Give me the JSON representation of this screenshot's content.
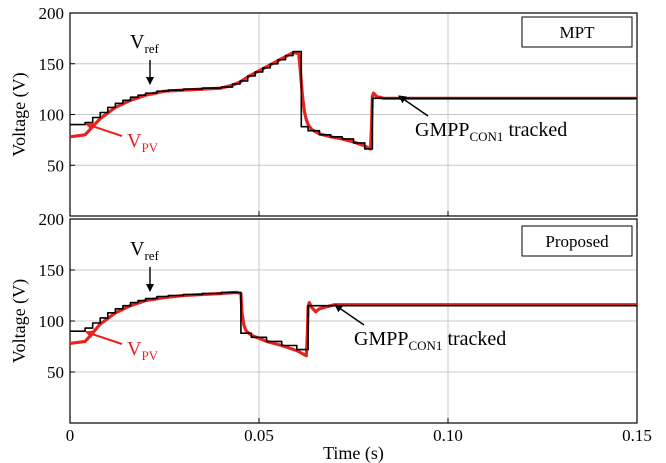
{
  "chart_data": [
    {
      "type": "line",
      "legend_box": "MPT",
      "ylabel": "Voltage (V)",
      "xlabel": "",
      "xlim": [
        0,
        0.15
      ],
      "ylim": [
        0,
        200
      ],
      "xticks": [
        0,
        0.05,
        0.1,
        0.15
      ],
      "xtick_labels": [
        "",
        "",
        "",
        ""
      ],
      "yticks": [
        0,
        50,
        100,
        150,
        200
      ],
      "ytick_labels": [
        "",
        "50",
        "100",
        "150",
        "200"
      ],
      "grid": true,
      "series": [
        {
          "color": "#000000",
          "x": [
            0,
            0.004,
            0.004,
            0.006,
            0.006,
            0.008,
            0.008,
            0.01,
            0.01,
            0.012,
            0.012,
            0.014,
            0.014,
            0.016,
            0.016,
            0.018,
            0.018,
            0.02,
            0.02,
            0.023,
            0.023,
            0.026,
            0.026,
            0.03,
            0.03,
            0.035,
            0.035,
            0.04,
            0.04,
            0.043,
            0.043,
            0.045,
            0.045,
            0.047,
            0.047,
            0.049,
            0.049,
            0.051,
            0.051,
            0.053,
            0.053,
            0.055,
            0.055,
            0.057,
            0.057,
            0.059,
            0.059,
            0.0612,
            0.0612,
            0.063,
            0.063,
            0.066,
            0.066,
            0.069,
            0.069,
            0.072,
            0.072,
            0.075,
            0.075,
            0.078,
            0.078,
            0.08,
            0.08,
            0.15
          ],
          "y": [
            90,
            90,
            92,
            92,
            97,
            97,
            102,
            102,
            107,
            107,
            111,
            111,
            114,
            114,
            117,
            117,
            119,
            119,
            121,
            121,
            123,
            123,
            124,
            124,
            125,
            125,
            126,
            126,
            127,
            127,
            130,
            130,
            133,
            133,
            138,
            138,
            142,
            142,
            146,
            146,
            150,
            150,
            154,
            154,
            158,
            158,
            162,
            162,
            88,
            88,
            84,
            84,
            80,
            80,
            78,
            78,
            76,
            76,
            72,
            72,
            66,
            66,
            116,
            116
          ]
        },
        {
          "color": "#e8231f",
          "x": [
            0,
            0.002,
            0.004,
            0.005,
            0.008,
            0.012,
            0.016,
            0.02,
            0.025,
            0.03,
            0.04,
            0.043,
            0.045,
            0.047,
            0.049,
            0.051,
            0.053,
            0.055,
            0.057,
            0.059,
            0.0605,
            0.061,
            0.0615,
            0.062,
            0.0625,
            0.063,
            0.064,
            0.066,
            0.069,
            0.072,
            0.075,
            0.078,
            0.0795,
            0.0798,
            0.08,
            0.0803,
            0.0806,
            0.081,
            0.0815,
            0.082,
            0.083,
            0.085,
            0.15
          ],
          "y": [
            78,
            79,
            80,
            84,
            96,
            107,
            114,
            119,
            123,
            124,
            126,
            129,
            132,
            137,
            141,
            145,
            149,
            153,
            157,
            161,
            160,
            140,
            118,
            103,
            95,
            90,
            85,
            81,
            78,
            76,
            73,
            69,
            66,
            90,
            118,
            121,
            120,
            118,
            117,
            117,
            116,
            116,
            116
          ]
        }
      ],
      "annotations": [
        {
          "main": "V",
          "sub": "ref",
          "color": "#000000"
        },
        {
          "main": "V",
          "sub": "PV",
          "color": "#e8231f"
        },
        {
          "main": "GMPP",
          "sub": "CON1",
          "tail": " tracked",
          "color": "#000000"
        }
      ]
    },
    {
      "type": "line",
      "legend_box": "Proposed",
      "ylabel": "Voltage (V)",
      "xlabel": "Time (s)",
      "xlim": [
        0,
        0.15
      ],
      "ylim": [
        0,
        200
      ],
      "xticks": [
        0,
        0.05,
        0.1,
        0.15
      ],
      "xtick_labels": [
        "0",
        "0.05",
        "0.10",
        "0.15"
      ],
      "yticks": [
        0,
        50,
        100,
        150,
        200
      ],
      "ytick_labels": [
        "",
        "50",
        "100",
        "150",
        "200"
      ],
      "grid": true,
      "series": [
        {
          "color": "#000000",
          "x": [
            0,
            0.004,
            0.004,
            0.006,
            0.006,
            0.008,
            0.008,
            0.01,
            0.01,
            0.012,
            0.012,
            0.014,
            0.014,
            0.016,
            0.016,
            0.018,
            0.018,
            0.02,
            0.02,
            0.023,
            0.023,
            0.026,
            0.026,
            0.03,
            0.03,
            0.035,
            0.035,
            0.04,
            0.04,
            0.0452,
            0.0452,
            0.048,
            0.048,
            0.052,
            0.052,
            0.056,
            0.056,
            0.06,
            0.06,
            0.063,
            0.063,
            0.15
          ],
          "y": [
            90,
            90,
            93,
            93,
            98,
            98,
            103,
            103,
            108,
            108,
            112,
            112,
            115,
            115,
            118,
            118,
            120,
            120,
            122,
            122,
            124,
            124,
            125,
            125,
            126,
            126,
            127,
            127,
            128,
            128,
            88,
            88,
            84,
            84,
            80,
            80,
            76,
            76,
            72,
            72,
            115,
            115
          ]
        },
        {
          "color": "#e8231f",
          "x": [
            0,
            0.002,
            0.004,
            0.005,
            0.008,
            0.012,
            0.016,
            0.02,
            0.025,
            0.03,
            0.04,
            0.044,
            0.0452,
            0.0455,
            0.046,
            0.0465,
            0.047,
            0.048,
            0.05,
            0.052,
            0.056,
            0.06,
            0.0625,
            0.0628,
            0.063,
            0.0633,
            0.0636,
            0.064,
            0.065,
            0.066,
            0.068,
            0.07,
            0.15
          ],
          "y": [
            78,
            79,
            80,
            84,
            97,
            108,
            115,
            120,
            123,
            125,
            127,
            128,
            127,
            108,
            96,
            91,
            89,
            86,
            83,
            80,
            76,
            71,
            66,
            88,
            114,
            118,
            116,
            113,
            109,
            112,
            114,
            116,
            116
          ]
        }
      ],
      "annotations": [
        {
          "main": "V",
          "sub": "ref",
          "color": "#000000"
        },
        {
          "main": "V",
          "sub": "PV",
          "color": "#e8231f"
        },
        {
          "main": "GMPP",
          "sub": "CON1",
          "tail": " tracked",
          "color": "#000000"
        }
      ]
    }
  ]
}
